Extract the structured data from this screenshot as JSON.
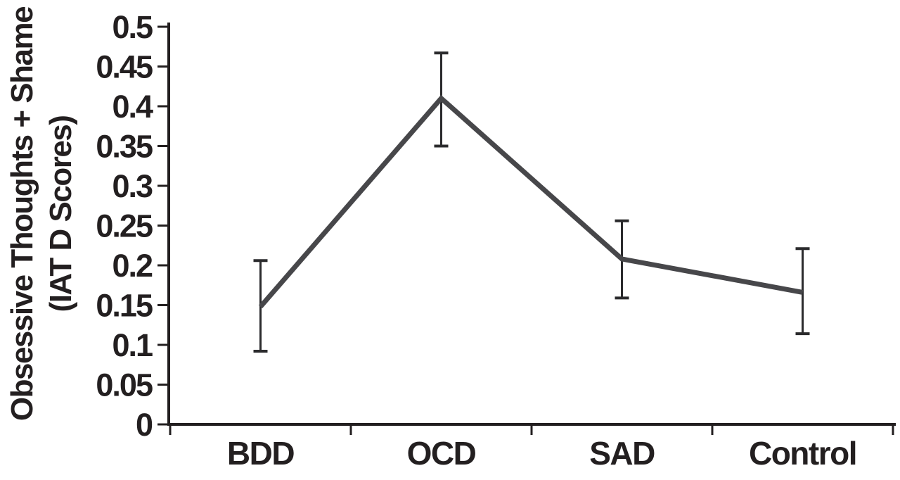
{
  "figure": {
    "background": "#ffffff",
    "axis_color": "#231f20",
    "text_color": "#231f20",
    "line_color": "#47474a",
    "error_bar_color": "#2b2b2d"
  },
  "chart_data": {
    "type": "line",
    "categories": [
      "BDD",
      "OCD",
      "SAD",
      "Control"
    ],
    "series": [
      {
        "name": "IAT D Scores",
        "values": [
          0.148,
          0.41,
          0.208,
          0.166
        ],
        "error_low": [
          0.092,
          0.35,
          0.159,
          0.114
        ],
        "error_high": [
          0.206,
          0.467,
          0.256,
          0.221
        ]
      }
    ],
    "ylabel_line1": "Obsessive Thoughts + Shame",
    "ylabel_line2": "(IAT D Scores)",
    "xlabel": "",
    "ylim": [
      0,
      0.5
    ],
    "ytick_step": 0.05,
    "ytick_labels": [
      "0",
      "0.05",
      "0.1",
      "0.15",
      "0.2",
      "0.25",
      "0.3",
      "0.35",
      "0.4",
      "0.45",
      "0.5"
    ],
    "grid": false,
    "legend": "none",
    "markers": "none",
    "error_bars": true
  }
}
